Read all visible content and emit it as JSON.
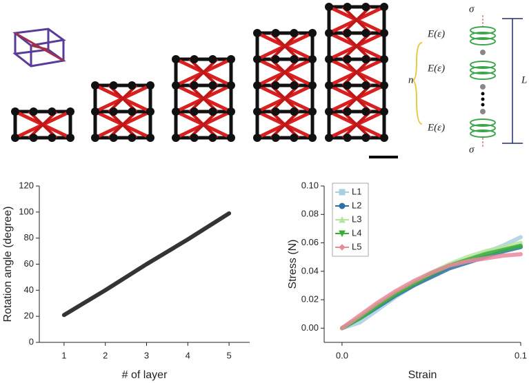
{
  "chart_data": [
    {
      "type": "line",
      "xlabel": "# of layer",
      "ylabel": "Rotation angle (degree)",
      "x": [
        1,
        2,
        3,
        4,
        5
      ],
      "series": [
        {
          "color": "#111111",
          "values": [
            21,
            40,
            60,
            79,
            99
          ]
        }
      ],
      "xlim": [
        0.4,
        5.5
      ],
      "xticks": [
        1,
        2,
        3,
        4,
        5
      ],
      "ylim": [
        0,
        120
      ],
      "yticks": [
        0,
        20,
        40,
        60,
        80,
        100,
        120
      ]
    },
    {
      "type": "line",
      "xlabel": "Strain",
      "ylabel": "Stress (N)",
      "legend": "upper left",
      "x": [
        0,
        0.01,
        0.02,
        0.03,
        0.04,
        0.05,
        0.06,
        0.07,
        0.08,
        0.09,
        0.1
      ],
      "series": [
        {
          "name": "L1",
          "color": "#a9cfe2",
          "marker": "square",
          "values": [
            0,
            0.004,
            0.013,
            0.022,
            0.03,
            0.037,
            0.043,
            0.048,
            0.053,
            0.058,
            0.064
          ]
        },
        {
          "name": "L2",
          "color": "#2f6fa5",
          "marker": "circle",
          "values": [
            0,
            0.007,
            0.015,
            0.023,
            0.03,
            0.036,
            0.042,
            0.046,
            0.05,
            0.054,
            0.057
          ]
        },
        {
          "name": "L3",
          "color": "#b7e49c",
          "marker": "triangle-up",
          "values": [
            0,
            0.008,
            0.017,
            0.025,
            0.032,
            0.039,
            0.045,
            0.05,
            0.054,
            0.057,
            0.06
          ]
        },
        {
          "name": "L4",
          "color": "#3aae3a",
          "marker": "triangle-down",
          "values": [
            0,
            0.007,
            0.016,
            0.024,
            0.031,
            0.038,
            0.044,
            0.048,
            0.052,
            0.055,
            0.058
          ]
        },
        {
          "name": "L5",
          "color": "#ea8a9b",
          "marker": "diamond",
          "values": [
            0,
            0.009,
            0.018,
            0.026,
            0.033,
            0.039,
            0.044,
            0.047,
            0.049,
            0.051,
            0.052
          ]
        }
      ],
      "xlim": [
        -0.01,
        0.1
      ],
      "xticks": [
        {
          "value": 0,
          "label": "0.0"
        },
        0.1
      ],
      "ylim": [
        -0.01,
        0.1
      ],
      "yticks": [
        {
          "value": 0,
          "label": "0.00"
        },
        {
          "value": 0.02,
          "label": "0.02"
        },
        {
          "value": 0.04,
          "label": "0.04"
        },
        {
          "value": 0.06,
          "label": "0.06"
        },
        {
          "value": 0.08,
          "label": "0.08"
        },
        {
          "value": 0.1,
          "label": "0.10"
        }
      ]
    }
  ],
  "diagram": {
    "sigma_top": "σ",
    "sigma_bottom": "σ",
    "moduli": [
      "E(ε)",
      "E(ε)",
      "E(ε)"
    ],
    "n": "n",
    "length": "L"
  }
}
